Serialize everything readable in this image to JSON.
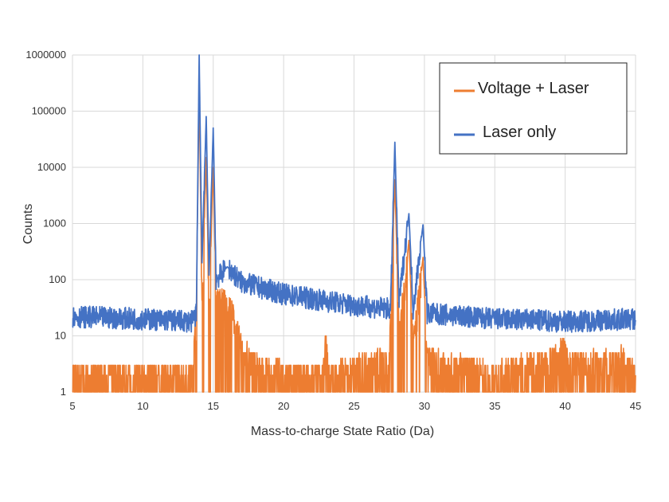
{
  "chart_data": {
    "type": "line",
    "title": "",
    "xlabel": "Mass-to-charge State Ratio (Da)",
    "ylabel": "Counts",
    "xlim": [
      5,
      45
    ],
    "ylim": [
      1,
      1000000
    ],
    "yscale": "log",
    "grid": true,
    "legend_position": "top-right",
    "x_ticks": [
      5,
      10,
      15,
      20,
      25,
      30,
      35,
      40,
      45
    ],
    "x_tick_labels": [
      "5",
      "10",
      "15",
      "20",
      "25",
      "30",
      "35",
      "40",
      "45"
    ],
    "y_ticks": [
      1,
      10,
      100,
      1000,
      10000,
      100000,
      1000000
    ],
    "y_tick_labels": [
      "1",
      "10",
      "100",
      "1000",
      "10000",
      "100000",
      "1000000"
    ],
    "series": [
      {
        "name": "Voltage + Laser",
        "color": "#ED7D31",
        "baseline_noise": [
          1,
          3
        ],
        "points": [
          [
            5,
            2
          ],
          [
            13.5,
            2
          ],
          [
            13.8,
            20
          ],
          [
            14.0,
            280000
          ],
          [
            14.2,
            40
          ],
          [
            14.5,
            15000
          ],
          [
            14.7,
            40
          ],
          [
            15.0,
            10000
          ],
          [
            15.2,
            40
          ],
          [
            15.5,
            45
          ],
          [
            16.0,
            40
          ],
          [
            16.5,
            20
          ],
          [
            17.0,
            6
          ],
          [
            18.0,
            3
          ],
          [
            20,
            2
          ],
          [
            22.8,
            2
          ],
          [
            23.0,
            8
          ],
          [
            23.2,
            2
          ],
          [
            27.5,
            4
          ],
          [
            27.9,
            6000
          ],
          [
            28.2,
            10
          ],
          [
            28.9,
            500
          ],
          [
            29.2,
            6
          ],
          [
            29.9,
            250
          ],
          [
            30.2,
            4
          ],
          [
            35,
            2
          ],
          [
            39.5,
            4
          ],
          [
            39.8,
            8
          ],
          [
            40.2,
            3
          ],
          [
            44,
            4
          ],
          [
            45,
            2
          ]
        ]
      },
      {
        "name": "Laser only",
        "color": "#4472C4",
        "baseline_noise": [
          12,
          35
        ],
        "points": [
          [
            5,
            22
          ],
          [
            10,
            20
          ],
          [
            13.5,
            18
          ],
          [
            13.8,
            25
          ],
          [
            14.0,
            1000000
          ],
          [
            14.2,
            200
          ],
          [
            14.5,
            80000
          ],
          [
            14.7,
            120
          ],
          [
            15.0,
            50000
          ],
          [
            15.2,
            100
          ],
          [
            16.0,
            170
          ],
          [
            17,
            90
          ],
          [
            20,
            55
          ],
          [
            25,
            35
          ],
          [
            27.6,
            30
          ],
          [
            27.9,
            28000
          ],
          [
            28.2,
            40
          ],
          [
            28.9,
            1500
          ],
          [
            29.2,
            30
          ],
          [
            29.9,
            950
          ],
          [
            30.2,
            25
          ],
          [
            35,
            20
          ],
          [
            40,
            18
          ],
          [
            45,
            20
          ]
        ]
      }
    ]
  }
}
